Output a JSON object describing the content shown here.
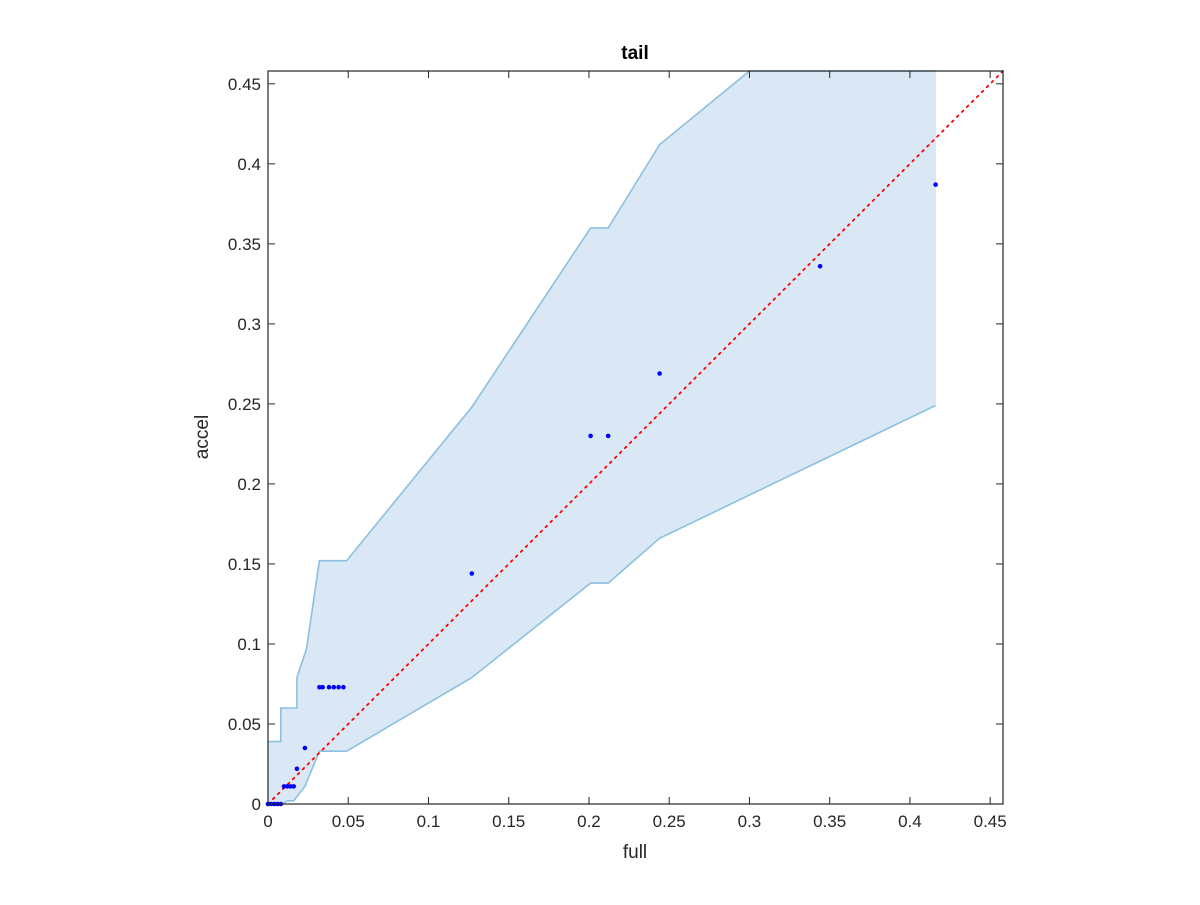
{
  "chart_data": {
    "type": "scatter",
    "title": "tail",
    "xlabel": "full",
    "ylabel": "accel",
    "xlim": [
      0,
      0.458
    ],
    "ylim": [
      0,
      0.45
    ],
    "grid": false,
    "x_ticks": [
      "0",
      "0.05",
      "0.1",
      "0.15",
      "0.2",
      "0.25",
      "0.3",
      "0.35",
      "0.4",
      "0.45"
    ],
    "y_ticks": [
      "0",
      "0.05",
      "0.1",
      "0.15",
      "0.2",
      "0.25",
      "0.3",
      "0.35",
      "0.4",
      "0.45"
    ],
    "colors": {
      "band_fill": "#d9e8f4",
      "band_edge": "#8cc0e0",
      "points": "#0000ff",
      "reference_line": "#ff0000",
      "axes": "#262626"
    },
    "points": {
      "x": [
        0,
        0.002,
        0.004,
        0.006,
        0.008,
        0.01,
        0.012,
        0.014,
        0.016,
        0.018,
        0.023,
        0.032,
        0.034,
        0.038,
        0.041,
        0.044,
        0.047,
        0.127,
        0.201,
        0.212,
        0.244,
        0.344,
        0.416
      ],
      "y": [
        0,
        0,
        0,
        0,
        0,
        0.011,
        0.011,
        0.011,
        0.011,
        0.022,
        0.035,
        0.073,
        0.073,
        0.073,
        0.073,
        0.073,
        0.073,
        0.144,
        0.23,
        0.23,
        0.269,
        0.336,
        0.387
      ]
    },
    "reference_line": {
      "x": [
        0,
        0.458
      ],
      "y": [
        0,
        0.458
      ]
    },
    "band_upper": {
      "x": [
        0,
        0.008,
        0.008,
        0.01,
        0.016,
        0.018,
        0.018,
        0.024,
        0.032,
        0.049,
        0.127,
        0.201,
        0.212,
        0.244,
        0.3,
        0.416
      ],
      "y": [
        0.039,
        0.039,
        0.06,
        0.06,
        0.06,
        0.06,
        0.079,
        0.097,
        0.152,
        0.152,
        0.248,
        0.36,
        0.36,
        0.412,
        0.458,
        0.458
      ]
    },
    "band_lower": {
      "x": [
        0,
        0.009,
        0.012,
        0.016,
        0.023,
        0.032,
        0.049,
        0.127,
        0.201,
        0.212,
        0.244,
        0.416
      ],
      "y": [
        0,
        0,
        0.002,
        0.002,
        0.011,
        0.033,
        0.033,
        0.079,
        0.138,
        0.138,
        0.166,
        0.249
      ]
    }
  }
}
